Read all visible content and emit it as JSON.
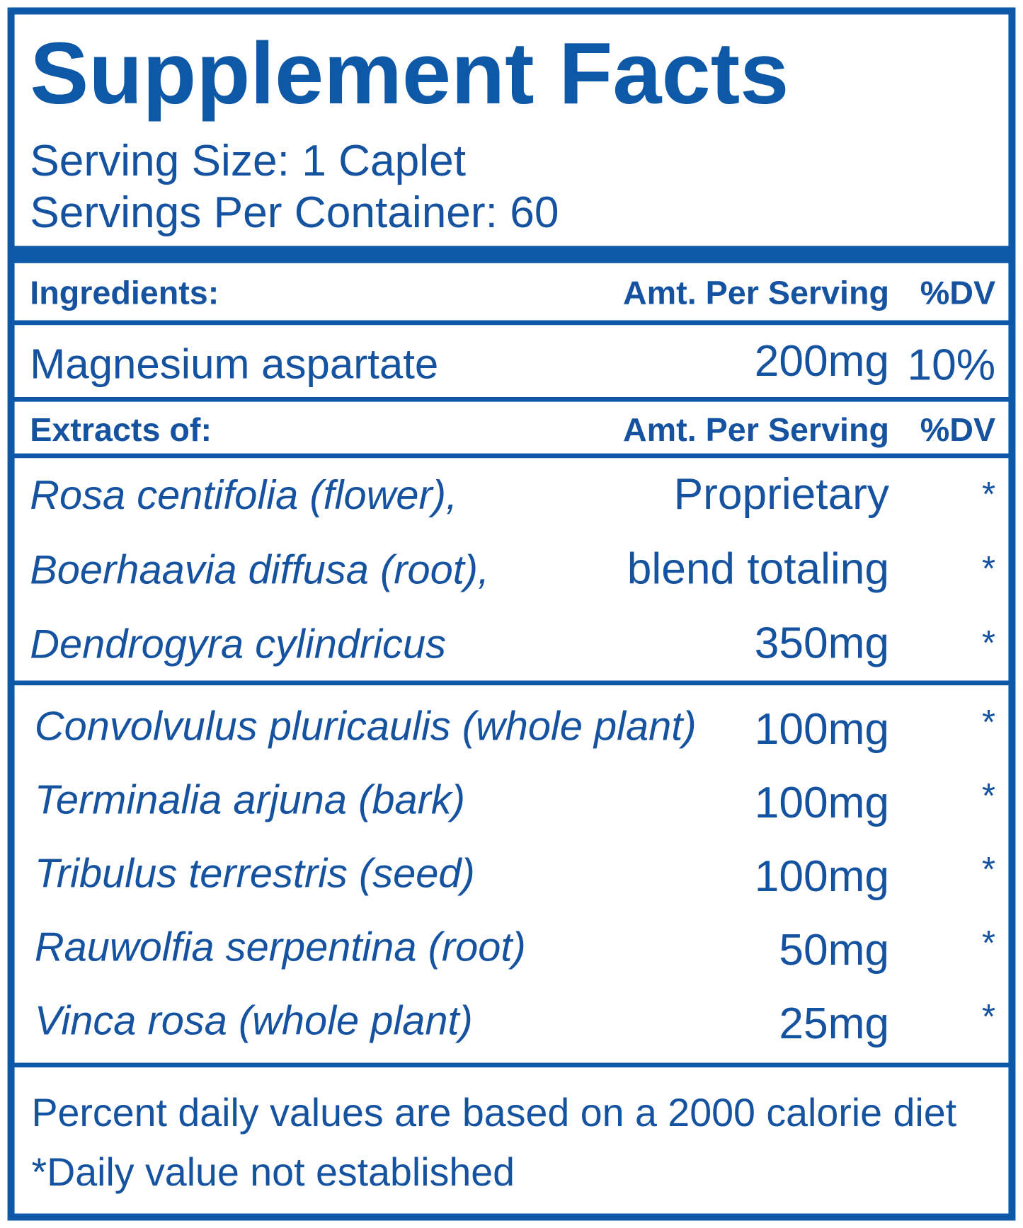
{
  "header": {
    "title": "Supplement Facts",
    "serving_size": "Serving Size: 1 Caplet",
    "servings_per_container": "Servings Per Container: 60"
  },
  "ingredients_header": {
    "label": "Ingredients:",
    "amount": "Amt. Per Serving",
    "dv": "%DV"
  },
  "ingredients": [
    {
      "name": "Magnesium aspartate",
      "amount": "200mg",
      "dv": "10%"
    }
  ],
  "extracts_header": {
    "label": "Extracts of:",
    "amount": "Amt. Per Serving",
    "dv": "%DV"
  },
  "blend": {
    "names": [
      "Rosa centifolia (flower),",
      "Boerhaavia diffusa (root),",
      "Dendrogyra cylindricus"
    ],
    "amount": [
      "Proprietary",
      "blend totaling",
      "350mg"
    ],
    "dv": [
      "*",
      "*",
      "*"
    ]
  },
  "extracts": [
    {
      "name": "Convolvulus pluricaulis (whole plant)",
      "amount": "100mg",
      "dv": "*"
    },
    {
      "name": "Terminalia arjuna (bark)",
      "amount": "100mg",
      "dv": "*"
    },
    {
      "name": "Tribulus terrestris (seed)",
      "amount": "100mg",
      "dv": "*"
    },
    {
      "name": "Rauwolfia serpentina (root)",
      "amount": "50mg",
      "dv": "*"
    },
    {
      "name": "Vinca rosa (whole plant)",
      "amount": "25mg",
      "dv": "*"
    }
  ],
  "footer": [
    "Percent daily values are based on a 2000 calorie diet",
    "*Daily value not established"
  ]
}
